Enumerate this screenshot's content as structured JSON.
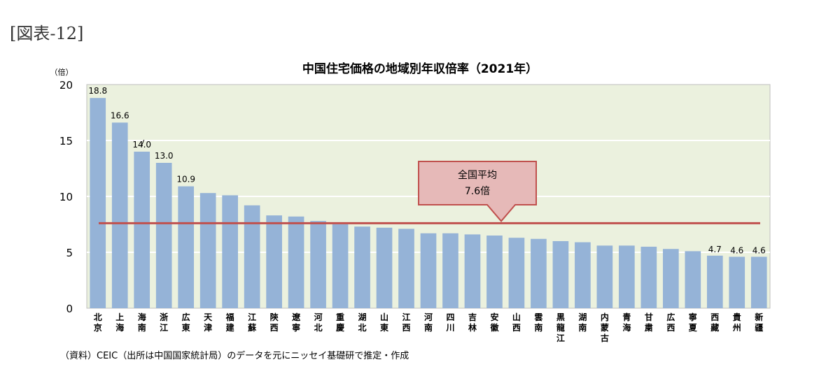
{
  "figure_label": "[図表-12]",
  "source": "（資料）CEIC（出所は中国国家統計局）のデータを元にニッセイ基礎研で推定・作成",
  "chart_data": {
    "type": "bar",
    "title": "中国住宅価格の地域別年収倍率（2021年）",
    "ylabel": "（倍）",
    "ylim": [
      0,
      20
    ],
    "yticks": [
      0,
      5,
      10,
      15,
      20
    ],
    "grid": true,
    "categories": [
      "北京",
      "上海",
      "海南",
      "浙江",
      "広東",
      "天津",
      "福建",
      "江蘇",
      "陝西",
      "遼寧",
      "河北",
      "重慶",
      "湖北",
      "山東",
      "江西",
      "河南",
      "四川",
      "吉林",
      "安徽",
      "山西",
      "雲南",
      "黒龍江",
      "湖南",
      "内蒙古",
      "青海",
      "甘粛",
      "広西",
      "寧夏",
      "西藏",
      "貴州",
      "新疆"
    ],
    "values": [
      18.8,
      16.6,
      14.0,
      13.0,
      10.9,
      10.3,
      10.1,
      9.2,
      8.3,
      8.2,
      7.8,
      7.5,
      7.3,
      7.2,
      7.1,
      6.7,
      6.7,
      6.6,
      6.5,
      6.3,
      6.2,
      6.0,
      5.9,
      5.6,
      5.6,
      5.5,
      5.3,
      5.1,
      4.7,
      4.6,
      4.6
    ],
    "data_labels": {
      "0": "18.8",
      "1": "16.6",
      "2": "14.0",
      "3": "13.0",
      "4": "10.9",
      "28": "4.7",
      "29": "4.6",
      "30": "4.6"
    },
    "average": {
      "value": 7.6,
      "label_line1": "全国平均",
      "label_line2": "7.6倍"
    },
    "colors": {
      "bar": "#95b3d7",
      "plot_bg": "#ebf1de",
      "average_line": "#c0504d",
      "callout_fill": "#e6b9b8",
      "callout_border": "#c0504d"
    }
  }
}
